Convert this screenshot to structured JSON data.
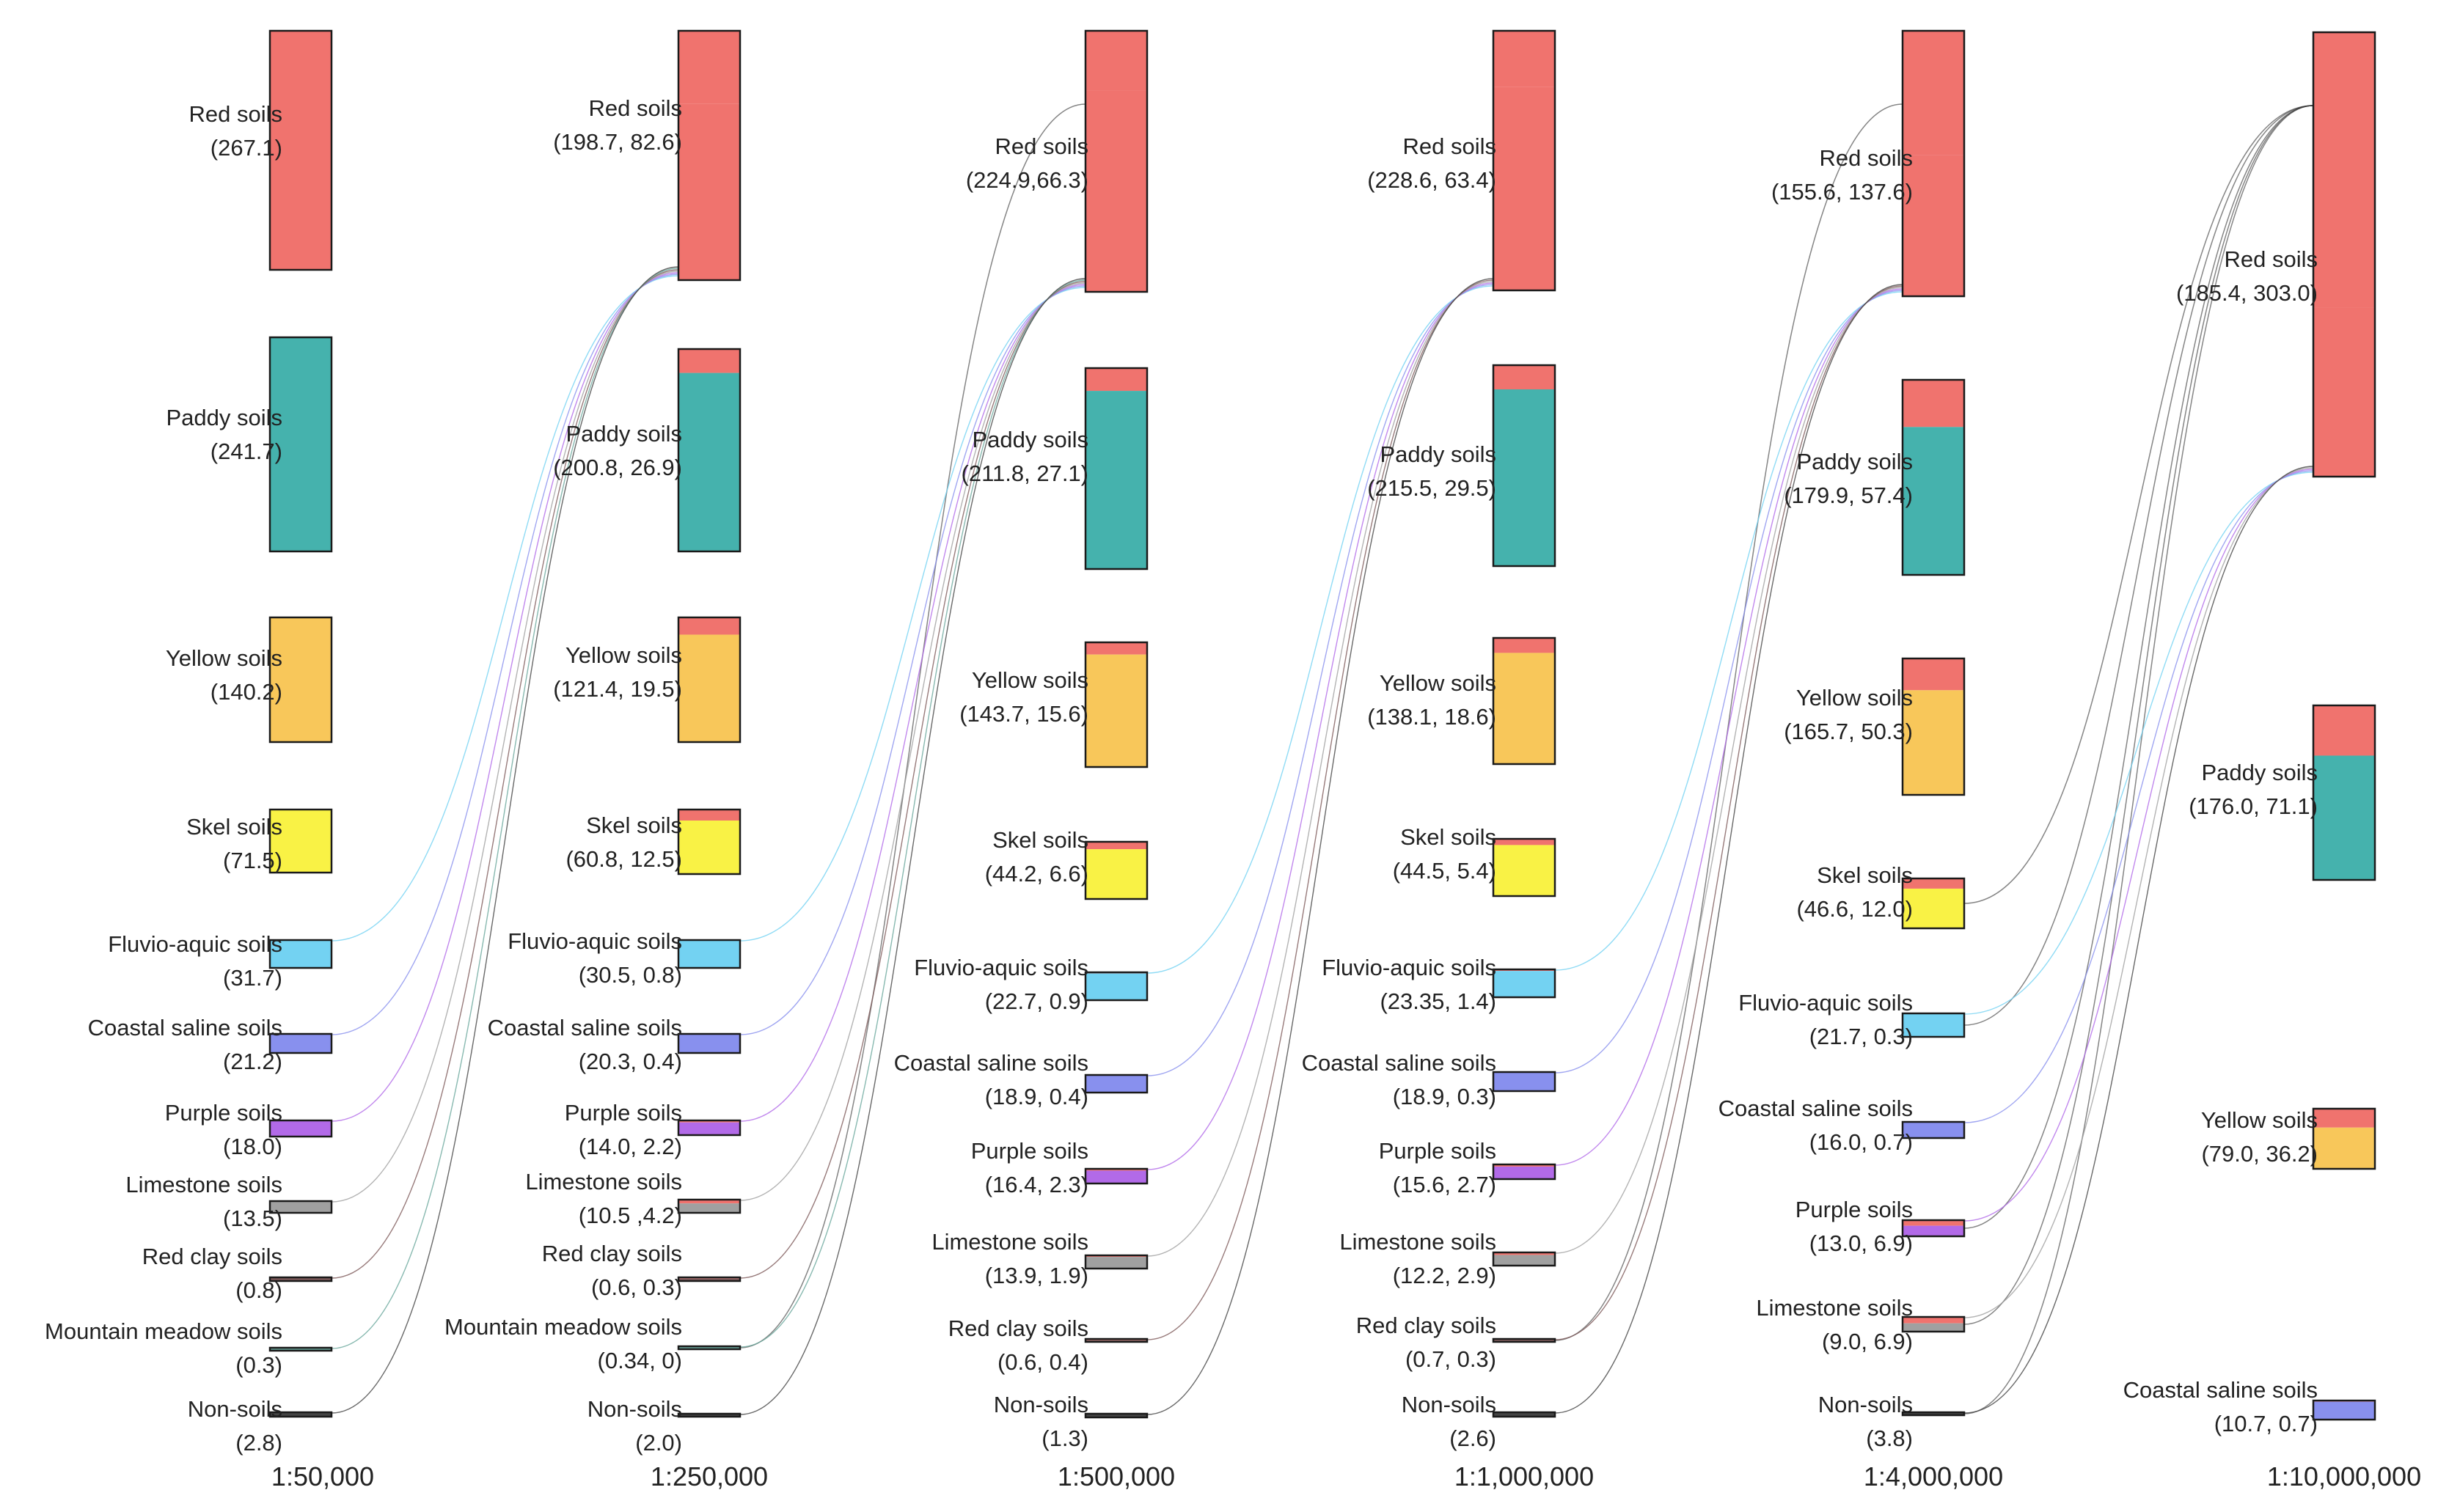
{
  "chart_data": {
    "type": "sankey",
    "title": "",
    "units_note": "",
    "scales": [
      "1:50,000",
      "1:250,000",
      "1:500,000",
      "1:1,000,000",
      "1:4,000,000",
      "1:10,000,000"
    ],
    "soil_types": [
      "Red soils",
      "Paddy soils",
      "Yellow soils",
      "Skel soils",
      "Fluvio-aquic soils",
      "Coastal saline soils",
      "Purple soils",
      "Limestone soils",
      "Red clay soils",
      "Mountain meadow soils",
      "Non-soils"
    ],
    "colors": {
      "Red soils": "#f0736e",
      "Paddy soils": "#45b2ad",
      "Yellow soils": "#f8c75a",
      "Skel soils": "#f9f245",
      "Fluvio-aquic soils": "#73d2f2",
      "Coastal saline soils": "#8890ee",
      "Purple soils": "#b26ae8",
      "Limestone soils": "#a0a0a0",
      "Red clay soils": "#7e5a5a",
      "Mountain meadow soils": "#6aa89c",
      "Non-soils": "#444444"
    },
    "columns": [
      {
        "scale": "1:50,000",
        "nodes": [
          {
            "name": "Red soils",
            "value_text": "(267.1)",
            "total": 267.1
          },
          {
            "name": "Paddy soils",
            "value_text": "(241.7)",
            "total": 241.7
          },
          {
            "name": "Yellow soils",
            "value_text": "(140.2)",
            "total": 140.2
          },
          {
            "name": "Skel soils",
            "value_text": "(71.5)",
            "total": 71.5
          },
          {
            "name": "Fluvio-aquic soils",
            "value_text": "(31.7)",
            "total": 31.7
          },
          {
            "name": "Coastal saline soils",
            "value_text": "(21.2)",
            "total": 21.2
          },
          {
            "name": "Purple soils",
            "value_text": "(18.0)",
            "total": 18.0
          },
          {
            "name": "Limestone soils",
            "value_text": "(13.5)",
            "total": 13.5
          },
          {
            "name": "Red clay soils",
            "value_text": "(0.8)",
            "total": 0.8
          },
          {
            "name": "Mountain meadow soils",
            "value_text": "(0.3)",
            "total": 0.3
          },
          {
            "name": "Non-soils",
            "value_text": "(2.8)",
            "total": 2.8
          }
        ]
      },
      {
        "scale": "1:250,000",
        "nodes": [
          {
            "name": "Red soils",
            "value_text": "(198.7, 82.6)",
            "retained": 198.7,
            "gained": 82.6
          },
          {
            "name": "Paddy soils",
            "value_text": "(200.8, 26.9)",
            "retained": 200.8,
            "gained": 26.9
          },
          {
            "name": "Yellow soils",
            "value_text": "(121.4, 19.5)",
            "retained": 121.4,
            "gained": 19.5
          },
          {
            "name": "Skel soils",
            "value_text": "(60.8, 12.5)",
            "retained": 60.8,
            "gained": 12.5
          },
          {
            "name": "Fluvio-aquic soils",
            "value_text": "(30.5, 0.8)",
            "retained": 30.5,
            "gained": 0.8
          },
          {
            "name": "Coastal saline soils",
            "value_text": "(20.3, 0.4)",
            "retained": 20.3,
            "gained": 0.4
          },
          {
            "name": "Purple soils",
            "value_text": "(14.0, 2.2)",
            "retained": 14.0,
            "gained": 2.2
          },
          {
            "name": "Limestone soils",
            "value_text": "(10.5 ,4.2)",
            "retained": 10.5,
            "gained": 4.2
          },
          {
            "name": "Red clay soils",
            "value_text": "(0.6, 0.3)",
            "retained": 0.6,
            "gained": 0.3
          },
          {
            "name": "Mountain meadow soils",
            "value_text": "(0.34, 0)",
            "retained": 0.34,
            "gained": 0
          },
          {
            "name": "Non-soils",
            "value_text": "(2.0)",
            "retained": 2.0,
            "gained": 0
          }
        ]
      },
      {
        "scale": "1:500,000",
        "nodes": [
          {
            "name": "Red soils",
            "value_text": "(224.9,66.3)",
            "retained": 224.9,
            "gained": 66.3
          },
          {
            "name": "Paddy soils",
            "value_text": "(211.8, 27.1)",
            "retained": 211.8,
            "gained": 27.1
          },
          {
            "name": "Yellow soils",
            "value_text": "(143.7, 15.6)",
            "retained": 143.7,
            "gained": 15.6
          },
          {
            "name": "Skel soils",
            "value_text": "(44.2, 6.6)",
            "retained": 44.2,
            "gained": 6.6
          },
          {
            "name": "Fluvio-aquic soils",
            "value_text": "(22.7, 0.9)",
            "retained": 22.7,
            "gained": 0.9
          },
          {
            "name": "Coastal saline soils",
            "value_text": "(18.9, 0.4)",
            "retained": 18.9,
            "gained": 0.4
          },
          {
            "name": "Purple soils",
            "value_text": "(16.4, 2.3)",
            "retained": 16.4,
            "gained": 2.3
          },
          {
            "name": "Limestone soils",
            "value_text": "(13.9, 1.9)",
            "retained": 13.9,
            "gained": 1.9
          },
          {
            "name": "Red clay soils",
            "value_text": "(0.6, 0.4)",
            "retained": 0.6,
            "gained": 0.4
          },
          {
            "name": "Non-soils",
            "value_text": "(1.3)",
            "retained": 1.3,
            "gained": 0
          }
        ]
      },
      {
        "scale": "1:1,000,000",
        "nodes": [
          {
            "name": "Red soils",
            "value_text": "(228.6, 63.4)",
            "retained": 228.6,
            "gained": 63.4
          },
          {
            "name": "Paddy soils",
            "value_text": "(215.5, 29.5)",
            "retained": 215.5,
            "gained": 29.5
          },
          {
            "name": "Yellow soils",
            "value_text": "(138.1, 18.6)",
            "retained": 138.1,
            "gained": 18.6
          },
          {
            "name": "Skel soils",
            "value_text": "(44.5, 5.4)",
            "retained": 44.5,
            "gained": 5.4
          },
          {
            "name": "Fluvio-aquic soils",
            "value_text": "(23.35, 1.4)",
            "retained": 23.35,
            "gained": 1.4
          },
          {
            "name": "Coastal saline soils",
            "value_text": "(18.9, 0.3)",
            "retained": 18.9,
            "gained": 0.3
          },
          {
            "name": "Purple soils",
            "value_text": "(15.6, 2.7)",
            "retained": 15.6,
            "gained": 2.7
          },
          {
            "name": "Limestone soils",
            "value_text": "(12.2, 2.9)",
            "retained": 12.2,
            "gained": 2.9
          },
          {
            "name": "Red clay soils",
            "value_text": "(0.7, 0.3)",
            "retained": 0.7,
            "gained": 0.3
          },
          {
            "name": "Non-soils",
            "value_text": "(2.6)",
            "retained": 2.6,
            "gained": 0
          }
        ]
      },
      {
        "scale": "1:4,000,000",
        "nodes": [
          {
            "name": "Red soils",
            "value_text": "(155.6, 137.6)",
            "retained": 155.6,
            "gained": 137.6
          },
          {
            "name": "Paddy soils",
            "value_text": "(179.9, 57.4)",
            "retained": 179.9,
            "gained": 57.4
          },
          {
            "name": "Yellow soils",
            "value_text": "(165.7, 50.3)",
            "retained": 165.7,
            "gained": 50.3
          },
          {
            "name": "Skel soils",
            "value_text": "(46.6, 12.0)",
            "retained": 46.6,
            "gained": 12.0
          },
          {
            "name": "Fluvio-aquic soils",
            "value_text": "(21.7, 0.3)",
            "retained": 21.7,
            "gained": 0.3
          },
          {
            "name": "Coastal saline soils",
            "value_text": "(16.0, 0.7)",
            "retained": 16.0,
            "gained": 0.7
          },
          {
            "name": "Purple soils",
            "value_text": "(13.0, 6.9)",
            "retained": 13.0,
            "gained": 6.9
          },
          {
            "name": "Limestone soils",
            "value_text": "(9.0, 6.9)",
            "retained": 9.0,
            "gained": 6.9
          },
          {
            "name": "Non-soils",
            "value_text": "(3.8)",
            "retained": 3.8,
            "gained": 0
          }
        ]
      },
      {
        "scale": "1:10,000,000",
        "nodes": [
          {
            "name": "Red soils",
            "value_text": "(185.4, 303.0)",
            "retained": 185.4,
            "gained": 303.0
          },
          {
            "name": "Paddy soils",
            "value_text": "(176.0, 71.1)",
            "retained": 176.0,
            "gained": 71.1
          },
          {
            "name": "Yellow soils",
            "value_text": "(79.0, 36.2)",
            "retained": 79.0,
            "gained": 36.2
          },
          {
            "name": "Coastal saline soils",
            "value_text": "(10.7, 0.7)",
            "retained": 10.7,
            "gained": 0.7
          }
        ]
      }
    ]
  }
}
